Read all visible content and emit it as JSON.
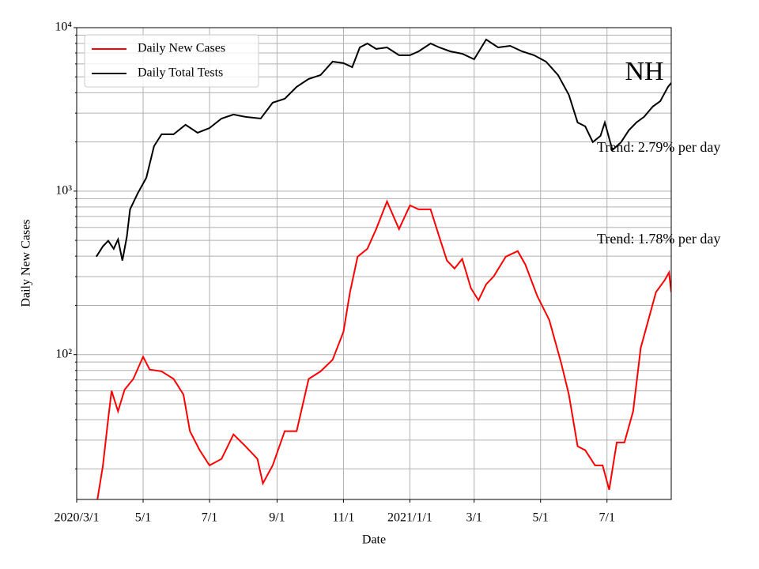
{
  "chart_data": {
    "type": "line",
    "log_y": true,
    "grid": true,
    "legend": "upper left",
    "xlabel": "Date",
    "ylabel": "Daily New Cases",
    "xlim": [
      0,
      546
    ],
    "xticks": [
      {
        "value": 0,
        "label": "2020/3/1"
      },
      {
        "value": 61,
        "label": "5/1"
      },
      {
        "value": 122,
        "label": "7/1"
      },
      {
        "value": 184,
        "label": "9/1"
      },
      {
        "value": 245,
        "label": "11/1"
      },
      {
        "value": 306,
        "label": "2021/1/1"
      },
      {
        "value": 365,
        "label": "3/1"
      },
      {
        "value": 426,
        "label": "5/1"
      },
      {
        "value": 487,
        "label": "7/1"
      }
    ],
    "ylim": [
      13,
      10000
    ],
    "yticks": [
      {
        "value": 100,
        "label": "10²"
      },
      {
        "value": 1000,
        "label": "10³"
      },
      {
        "value": 10000,
        "label": "10⁴"
      }
    ],
    "yminor_ticks": [
      20,
      30,
      40,
      50,
      60,
      70,
      80,
      90,
      200,
      300,
      400,
      500,
      600,
      700,
      800,
      900,
      2000,
      3000,
      4000,
      5000,
      6000,
      7000,
      8000,
      9000
    ],
    "annotations": [
      {
        "text": "NH",
        "kind": "state"
      },
      {
        "text": "Trend: 2.79% per day",
        "kind": "trend-tests"
      },
      {
        "text": "Trend: 1.78% per day",
        "kind": "trend-cases"
      }
    ],
    "series": [
      {
        "name": "Daily New Cases",
        "color": "#ff0000",
        "x": [
          19,
          24,
          29,
          32,
          38,
          44,
          52,
          61,
          67,
          78,
          89,
          98,
          104,
          113,
          122,
          133,
          144,
          155,
          166,
          171,
          180,
          191,
          202,
          213,
          224,
          235,
          245,
          251,
          258,
          267,
          275,
          285,
          296,
          306,
          314,
          325,
          333,
          340,
          347,
          354,
          362,
          369,
          376,
          383,
          394,
          405,
          412,
          423,
          434,
          445,
          452,
          460,
          467,
          476,
          483,
          489,
          496,
          503,
          511,
          518,
          525,
          532,
          540,
          544,
          546
        ],
        "values": [
          13,
          20.8,
          40.6,
          60,
          45,
          61,
          71,
          97,
          81,
          79,
          71,
          57,
          34,
          26,
          21,
          23,
          32.5,
          27.5,
          23,
          16.3,
          21,
          34,
          34,
          71,
          79,
          93,
          138,
          241,
          397,
          444,
          586,
          865,
          586,
          818,
          774,
          774,
          525,
          376,
          336,
          385,
          255,
          215,
          269,
          301,
          397,
          430,
          356,
          228,
          163,
          88.5,
          57,
          27.5,
          26,
          21,
          21,
          14.9,
          29,
          29,
          45,
          110,
          163,
          241,
          285,
          318,
          241
        ]
      },
      {
        "name": "Daily Total Tests",
        "color": "#000000",
        "x": [
          18,
          24,
          29,
          34,
          38,
          42,
          46,
          49,
          56,
          64,
          71,
          78,
          89,
          100,
          111,
          122,
          133,
          144,
          155,
          169,
          180,
          191,
          202,
          213,
          224,
          235,
          245,
          253,
          260,
          267,
          275,
          285,
          296,
          306,
          314,
          325,
          333,
          343,
          354,
          365,
          376,
          387,
          398,
          409,
          420,
          431,
          442,
          452,
          460,
          467,
          474,
          481,
          485,
          492,
          500,
          507,
          514,
          521,
          529,
          536,
          543,
          546
        ],
        "values": [
          397,
          459,
          497,
          444,
          507,
          376,
          525,
          774,
          968,
          1208,
          1884,
          2228,
          2228,
          2547,
          2276,
          2433,
          2781,
          2943,
          2845,
          2781,
          3476,
          3673,
          4345,
          4854,
          5131,
          6194,
          6067,
          5731,
          7571,
          8000,
          7413,
          7571,
          6778,
          6778,
          7161,
          8000,
          7571,
          7161,
          6928,
          6408,
          8465,
          7571,
          7744,
          7161,
          6778,
          6194,
          5131,
          3882,
          2630,
          2489,
          1995,
          2178,
          2630,
          1783,
          1995,
          2355,
          2630,
          2845,
          3289,
          3556,
          4345,
          4592
        ]
      }
    ]
  }
}
